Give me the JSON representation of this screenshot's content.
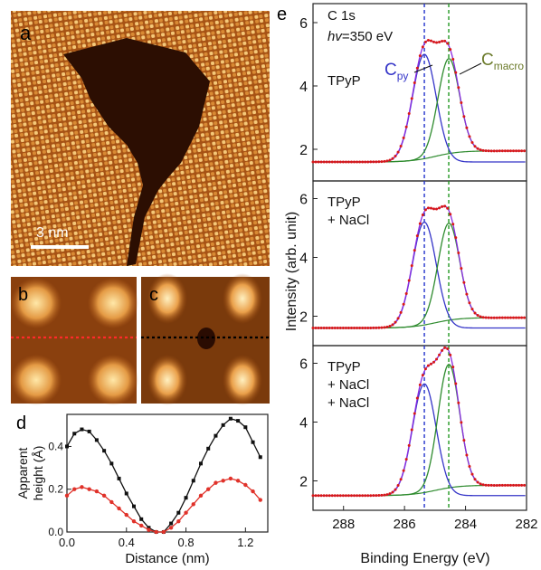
{
  "panels": {
    "a": {
      "label": "a",
      "scalebar": "3 nm"
    },
    "b": {
      "label": "b"
    },
    "c": {
      "label": "c"
    },
    "d": {
      "label": "d",
      "xlabel": "Distance (nm)",
      "ylabel": [
        "Apparent",
        "height (Å)"
      ]
    },
    "e": {
      "label": "e",
      "edge": "C 1s",
      "photon_prefix": "hv",
      "photon_value": "=350 eV",
      "peak_py_main": "C",
      "peak_py_sub": "py",
      "peak_macro_main": "C",
      "peak_macro_sub": "macro",
      "sample_labels": [
        [
          "TPyP"
        ],
        [
          "TPyP",
          "+ NaCl"
        ],
        [
          "TPyP",
          "+ NaCl",
          "+ NaCl"
        ]
      ],
      "xlabel": "Binding Energy (eV)",
      "ylabel": "Intensity (arb. unit)"
    }
  },
  "colors": {
    "stm_dark": "#3a1404",
    "stm_mid": "#c46a1c",
    "stm_bright": "#ffe3a0",
    "red_profile": "#e0322a",
    "black_profile": "#111111",
    "py_peak": "#3535c8",
    "macro_peak": "#2e8b2e",
    "fit_envelope": "#8a2be2",
    "data_points": "#d81818",
    "py_dashed": "#2233cc",
    "macro_dashed": "#229922"
  },
  "chart_data": [
    {
      "type": "line",
      "panel": "d",
      "xlabel": "Distance (nm)",
      "ylabel": "Apparent height (Å)",
      "xlim": [
        0.0,
        1.35
      ],
      "ylim": [
        0.0,
        0.55
      ],
      "xticks": [
        0.0,
        0.4,
        0.8,
        1.2
      ],
      "yticks": [
        0.0,
        0.2,
        0.4
      ],
      "grid": false,
      "series": [
        {
          "color": "#111111",
          "marker": "square",
          "x": [
            0.0,
            0.05,
            0.1,
            0.15,
            0.2,
            0.25,
            0.3,
            0.35,
            0.4,
            0.45,
            0.5,
            0.55,
            0.6,
            0.65,
            0.7,
            0.75,
            0.8,
            0.85,
            0.9,
            0.95,
            1.0,
            1.05,
            1.1,
            1.15,
            1.2,
            1.25,
            1.3
          ],
          "y": [
            0.4,
            0.46,
            0.48,
            0.47,
            0.43,
            0.38,
            0.32,
            0.25,
            0.18,
            0.12,
            0.06,
            0.02,
            0.0,
            0.0,
            0.04,
            0.09,
            0.16,
            0.24,
            0.32,
            0.39,
            0.45,
            0.5,
            0.53,
            0.52,
            0.49,
            0.42,
            0.35
          ]
        },
        {
          "color": "#e0322a",
          "marker": "circle",
          "x": [
            0.0,
            0.05,
            0.1,
            0.15,
            0.2,
            0.25,
            0.3,
            0.35,
            0.4,
            0.45,
            0.5,
            0.55,
            0.6,
            0.65,
            0.7,
            0.75,
            0.8,
            0.85,
            0.9,
            0.95,
            1.0,
            1.05,
            1.1,
            1.15,
            1.2,
            1.25,
            1.3
          ],
          "y": [
            0.17,
            0.2,
            0.21,
            0.2,
            0.19,
            0.17,
            0.14,
            0.11,
            0.08,
            0.05,
            0.03,
            0.01,
            0.0,
            0.0,
            0.02,
            0.05,
            0.09,
            0.13,
            0.17,
            0.2,
            0.23,
            0.24,
            0.25,
            0.24,
            0.22,
            0.19,
            0.15
          ]
        }
      ]
    },
    {
      "type": "line",
      "panel": "e",
      "xlabel": "Binding Energy (eV)",
      "ylabel": "Intensity (arb. unit)",
      "xlim": [
        289,
        282
      ],
      "xticks": [
        288,
        286,
        284,
        282
      ],
      "ylim": [
        1,
        6.6
      ],
      "yticks": [
        2,
        4,
        6
      ],
      "grid": false,
      "dashed_lines_x": [
        285.35,
        284.55
      ],
      "subpanels": [
        {
          "sample": "TPyP",
          "baseline": 1.6,
          "peak_py": {
            "center": 285.35,
            "height": 3.4,
            "width": 0.55
          },
          "peak_macro": {
            "center": 284.55,
            "height": 3.0,
            "width": 0.5
          }
        },
        {
          "sample": "TPyP + NaCl",
          "baseline": 1.6,
          "peak_py": {
            "center": 285.35,
            "height": 3.6,
            "width": 0.55
          },
          "peak_macro": {
            "center": 284.55,
            "height": 3.3,
            "width": 0.5
          }
        },
        {
          "sample": "TPyP + NaCl + NaCl",
          "baseline": 1.5,
          "peak_py": {
            "center": 285.35,
            "height": 3.8,
            "width": 0.55
          },
          "peak_macro": {
            "center": 284.55,
            "height": 4.2,
            "width": 0.5
          }
        }
      ]
    }
  ]
}
